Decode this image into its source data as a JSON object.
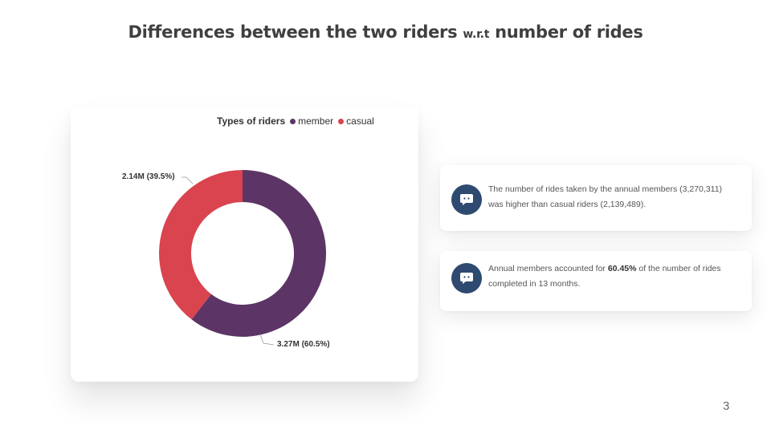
{
  "slide": {
    "title_part1": "Differences between the two riders ",
    "title_small": "w.r.t",
    "title_part2": " number of rides",
    "page_number": "3"
  },
  "chart_data": {
    "type": "pie",
    "legend_title": "Types of riders",
    "legend_position": "top",
    "donut": true,
    "series": [
      {
        "name": "member",
        "value": 3.27,
        "percent": 60.5,
        "label": "3.27M (60.5%)",
        "color": "#5c3566"
      },
      {
        "name": "casual",
        "value": 2.14,
        "percent": 39.5,
        "label": "2.14M (39.5%)",
        "color": "#d9444f"
      }
    ]
  },
  "insights": [
    {
      "icon": "chat-bubble-icon",
      "text": "The number of rides taken by the annual members (3,270,311) was higher than casual riders (2,139,489)."
    },
    {
      "icon": "chat-bubble-icon",
      "text_before": "Annual members accounted for ",
      "text_bold": "60.45%",
      "text_after": " of the number of rides completed in 13 months."
    }
  ],
  "colors": {
    "badge": "#2f4a70",
    "member": "#5c3566",
    "casual": "#d9444f"
  }
}
